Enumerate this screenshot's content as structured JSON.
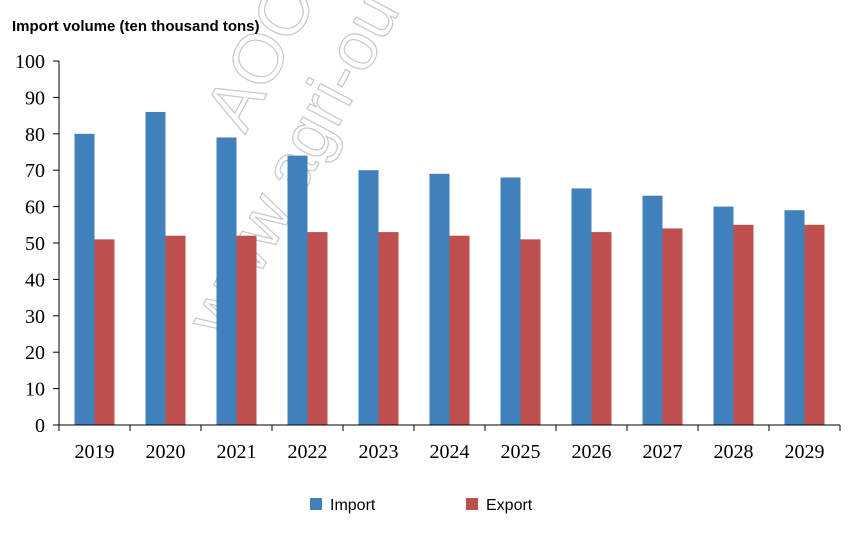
{
  "chart_data": {
    "type": "bar",
    "title": "Import volume (ten thousand tons)",
    "categories": [
      "2019",
      "2020",
      "2021",
      "2022",
      "2023",
      "2024",
      "2025",
      "2026",
      "2027",
      "2028",
      "2029"
    ],
    "series": [
      {
        "name": "Import",
        "color": "#4081BB",
        "values": [
          80,
          86,
          79,
          74,
          70,
          69,
          68,
          65,
          63,
          60,
          59
        ]
      },
      {
        "name": "Export",
        "color": "#C0504D",
        "values": [
          51,
          52,
          52,
          53,
          53,
          52,
          51,
          53,
          54,
          55,
          55
        ]
      }
    ],
    "ylim": [
      0,
      100
    ],
    "yticks": [
      0,
      10,
      20,
      30,
      40,
      50,
      60,
      70,
      80,
      90,
      100
    ],
    "legend": "bottom",
    "grid": false
  },
  "watermark": [
    "AOC",
    "www.agri-ou"
  ]
}
